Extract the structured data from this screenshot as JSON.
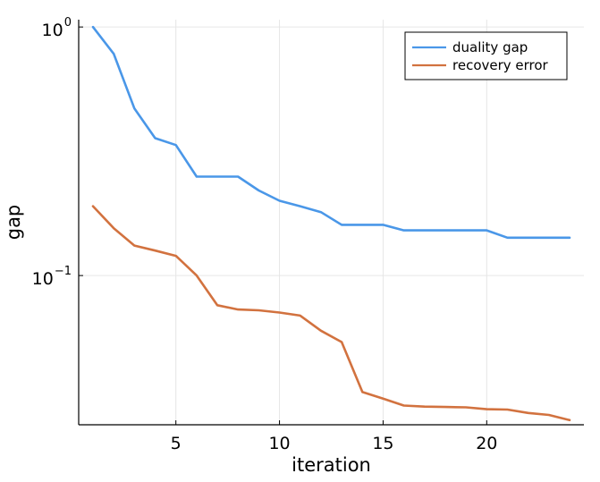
{
  "chart_data": {
    "type": "line",
    "title": "",
    "xlabel": "iteration",
    "ylabel": "gap",
    "x": [
      1,
      2,
      3,
      4,
      5,
      6,
      7,
      8,
      9,
      10,
      11,
      12,
      13,
      14,
      15,
      16,
      17,
      18,
      19,
      20,
      21,
      22,
      23,
      24
    ],
    "series": [
      {
        "name": "duality gap",
        "color": "#4a97e8",
        "values": [
          1.0,
          0.78,
          0.47,
          0.357,
          0.335,
          0.25,
          0.25,
          0.25,
          0.22,
          0.2,
          0.19,
          0.18,
          0.16,
          0.16,
          0.16,
          0.152,
          0.152,
          0.152,
          0.152,
          0.152,
          0.142,
          0.142,
          0.142,
          0.142
        ]
      },
      {
        "name": "recovery error",
        "color": "#d2723f",
        "values": [
          0.19,
          0.155,
          0.132,
          0.126,
          0.12,
          0.1,
          0.076,
          0.073,
          0.0725,
          0.071,
          0.069,
          0.06,
          0.054,
          0.034,
          0.032,
          0.03,
          0.0297,
          0.0296,
          0.0295,
          0.029,
          0.0289,
          0.028,
          0.0275,
          0.0262
        ]
      }
    ],
    "xticks": [
      5,
      10,
      15,
      20
    ],
    "xtick_labels": [
      "5",
      "10",
      "15",
      "20"
    ],
    "yticks": [
      {
        "value": 1.0,
        "base": "10",
        "exp": "0"
      },
      {
        "value": 0.1,
        "base": "10",
        "exp": "−1"
      }
    ],
    "xlim": [
      0.31,
      24.69
    ],
    "ylim": [
      0.0251,
      1.07
    ],
    "yscale": "log",
    "grid": true,
    "legend_position": "top-right"
  }
}
